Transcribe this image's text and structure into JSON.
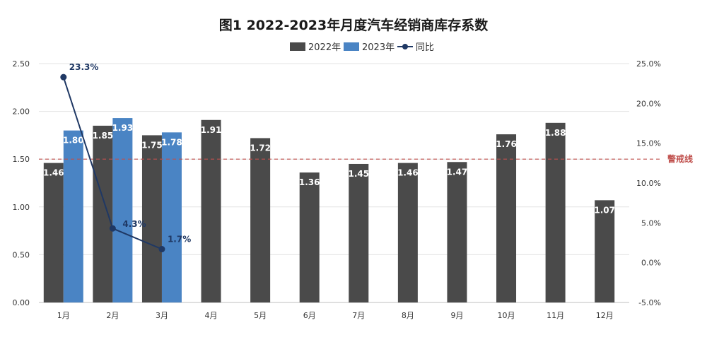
{
  "chart_data": {
    "type": "bar",
    "title": "图1  2022-2023年月度汽车经销商库存系数",
    "categories": [
      "1月",
      "2月",
      "3月",
      "4月",
      "5月",
      "6月",
      "7月",
      "8月",
      "9月",
      "10月",
      "11月",
      "12月"
    ],
    "series": [
      {
        "name": "2022年",
        "kind": "bar",
        "axis": "left",
        "color": "#4a4a4a",
        "values": [
          1.46,
          1.85,
          1.75,
          1.91,
          1.72,
          1.36,
          1.45,
          1.46,
          1.47,
          1.76,
          1.88,
          1.07
        ]
      },
      {
        "name": "2023年",
        "kind": "bar",
        "axis": "left",
        "color": "#4a84c4",
        "values": [
          1.8,
          1.93,
          1.78,
          null,
          null,
          null,
          null,
          null,
          null,
          null,
          null,
          null
        ]
      },
      {
        "name": "同比",
        "kind": "line",
        "axis": "right",
        "color": "#1f3864",
        "values": [
          23.3,
          4.3,
          1.7,
          null,
          null,
          null,
          null,
          null,
          null,
          null,
          null,
          null
        ],
        "labels": [
          "23.3%",
          "4.3%",
          "1.7%"
        ]
      }
    ],
    "y_left": {
      "min": 0,
      "max": 2.5,
      "ticks": [
        "0.00",
        "0.50",
        "1.00",
        "1.50",
        "2.00",
        "2.50"
      ]
    },
    "y_right": {
      "min": -5,
      "max": 25,
      "ticks": [
        "-5.0%",
        "0.0%",
        "5.0%",
        "10.0%",
        "15.0%",
        "20.0%",
        "25.0%"
      ]
    },
    "reference_line": {
      "value": 1.5,
      "label": "警戒线",
      "color": "#c0504d"
    },
    "legend_position": "top-center",
    "grid": true
  }
}
